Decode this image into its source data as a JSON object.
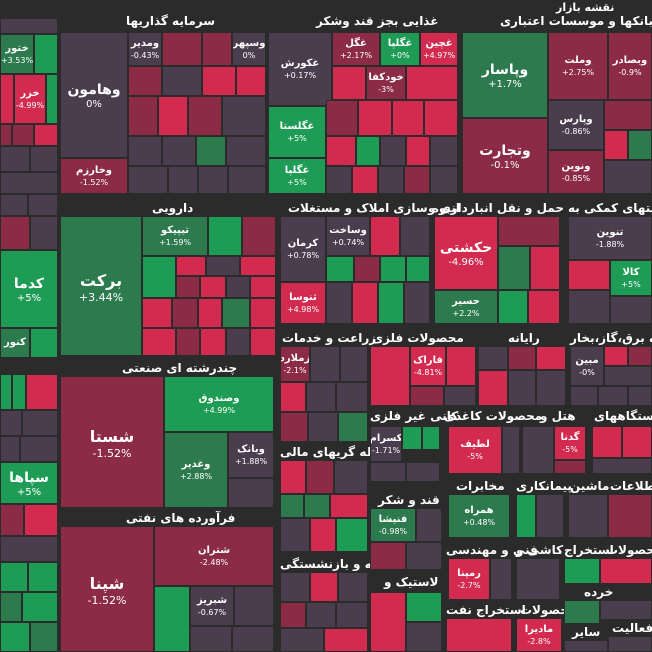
{
  "title": "نقشه بازار",
  "colors": {
    "up_strong": "#1e9c55",
    "up": "#2c7a4e",
    "neutral": "#4a3e4e",
    "down": "#8b2b46",
    "down_strong": "#d32a4f",
    "background": "#2b2b2b"
  },
  "chart_data": {
    "type": "heatmap",
    "sectors": [
      "بانکها و موسسات اعتباری",
      "غذایی بجز قند وشکر",
      "سرمایه گذاریها",
      "دارویی",
      "انبوه سازی املاک و مستغلات",
      "حمل و نقل انبارداری و",
      "فعالیتهای کمکی به",
      "چندرشته ای صنعتی",
      "زراعت و خدمات",
      "محصولات فلزی",
      "رایانه",
      "عرضه برق،گاز،بخار",
      "کانی غیر فلزی",
      "محصولات کاغذی",
      "هتل و",
      "دستگاههای",
      "واسطه گریهای مالی",
      "فرآورده های نفتی",
      "قند و شکر",
      "مخابرات",
      "پیمانکاری",
      "ماشین",
      "اطلاعات",
      "بیمه و بازنشستگی",
      "فنی و مهندسی",
      "کاشی و",
      "استخراج",
      "محصولات",
      "لاستیک و",
      "استخراج نفت",
      "محصولات",
      "خرده",
      "ساير",
      "فعالیت"
    ],
    "tiles": [
      {
        "name": "ختور",
        "change": "+3.53%"
      },
      {
        "name": "خزر",
        "change": "-4.99%"
      },
      {
        "name": "وهامون",
        "change": "0%"
      },
      {
        "name": "وخارزم",
        "change": "-1.52%"
      },
      {
        "name": "ومدیر",
        "change": "-0.43%"
      },
      {
        "name": "وسپهر",
        "change": "0%"
      },
      {
        "name": "غکورش",
        "change": "+0.17%"
      },
      {
        "name": "غگل",
        "change": "+2.17%"
      },
      {
        "name": "غگلپا",
        "change": "+0%"
      },
      {
        "name": "غچین",
        "change": "+4.97%"
      },
      {
        "name": "خودکفا",
        "change": "-3%"
      },
      {
        "name": "غگلستا",
        "change": "+5%"
      },
      {
        "name": "غگلپا",
        "change": "+5%"
      },
      {
        "name": "وپاسار",
        "change": "+1.7%"
      },
      {
        "name": "وتجارت",
        "change": "-0.1%"
      },
      {
        "name": "وملت",
        "change": "+2.75%"
      },
      {
        "name": "وبصادر",
        "change": "-0.9%"
      },
      {
        "name": "وپارس",
        "change": "-0.86%"
      },
      {
        "name": "ونوین",
        "change": "-0.85%"
      },
      {
        "name": "کدما",
        "change": "+5%"
      },
      {
        "name": "کنور",
        "change": ""
      },
      {
        "name": "برکت",
        "change": "+3.44%"
      },
      {
        "name": "تیپیکو",
        "change": "+1.59%"
      },
      {
        "name": "کرمان",
        "change": "+0.78%"
      },
      {
        "name": "وساخت",
        "change": "+0.74%"
      },
      {
        "name": "ثنوسا",
        "change": "+4.98%"
      },
      {
        "name": "حکشتی",
        "change": "-4.96%"
      },
      {
        "name": "حسیر",
        "change": "+2.2%"
      },
      {
        "name": "تنوین",
        "change": "-1.88%"
      },
      {
        "name": "کالا",
        "change": "+5%"
      },
      {
        "name": "شستا",
        "change": "-1.52%"
      },
      {
        "name": "وصندوق",
        "change": "+4.99%"
      },
      {
        "name": "وغدیر",
        "change": "+2.88%"
      },
      {
        "name": "وبانک",
        "change": "+1.88%"
      },
      {
        "name": "زملارد",
        "change": "-2.1%"
      },
      {
        "name": "فاراک",
        "change": "-4.81%"
      },
      {
        "name": "مبین",
        "change": "-0%"
      },
      {
        "name": "کسرام",
        "change": "-1.71%"
      },
      {
        "name": "لطیف",
        "change": "-5%"
      },
      {
        "name": "گدنا",
        "change": "-5%"
      },
      {
        "name": "سپاها",
        "change": "+5%"
      },
      {
        "name": "همراه",
        "change": "+0.48%"
      },
      {
        "name": "فنیشا",
        "change": "-0.98%"
      },
      {
        "name": "شپنا",
        "change": "-1.52%"
      },
      {
        "name": "شتران",
        "change": "-2.48%"
      },
      {
        "name": "شبریز",
        "change": "-0.67%"
      },
      {
        "name": "رمپنا",
        "change": "-2.7%"
      },
      {
        "name": "ماديرا",
        "change": "-2.8%"
      }
    ]
  }
}
